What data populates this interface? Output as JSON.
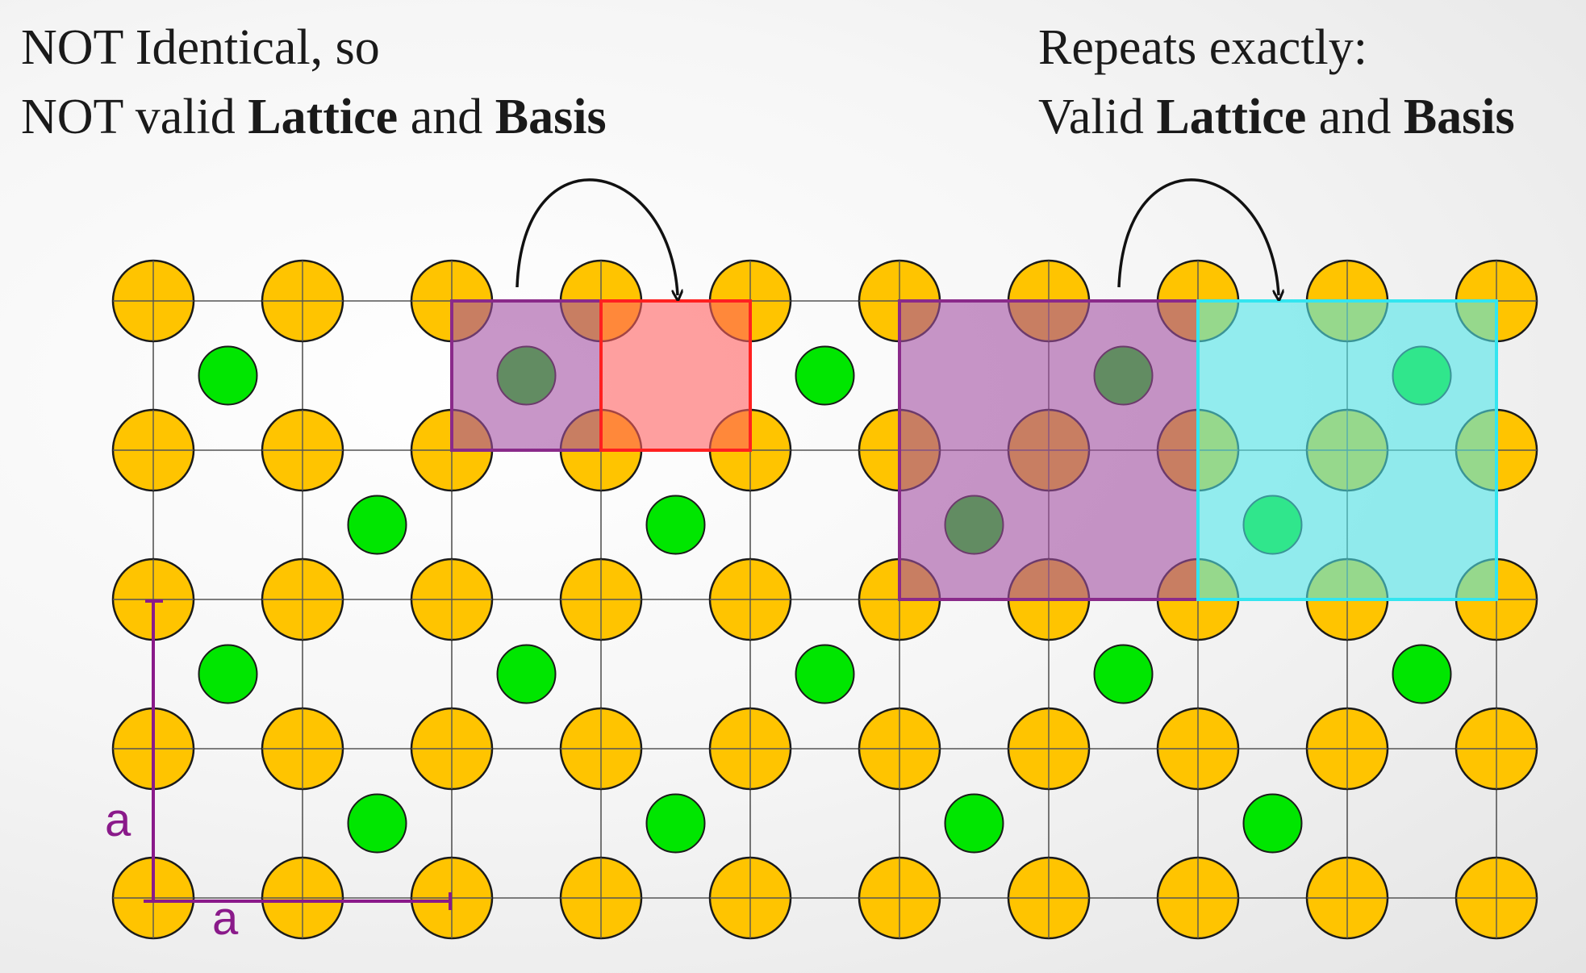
{
  "left_caption": {
    "line1": "NOT Identical, so",
    "line2_prefix": "NOT valid ",
    "line2_bold1": "Lattice",
    "line2_mid": " and ",
    "line2_bold2": "Basis"
  },
  "right_caption": {
    "line1": "Repeats exactly:",
    "line2_prefix": "Valid ",
    "line2_bold1": "Lattice",
    "line2_mid": " and ",
    "line2_bold2": "Basis"
  },
  "lattice": {
    "columns": 10,
    "rows": 5,
    "large_atom_color": "#ffc400",
    "small_atom_color": "#00e600",
    "grid_color": "#555555",
    "small_atoms": [
      [
        0,
        0
      ],
      [
        2,
        0
      ],
      [
        4,
        0
      ],
      [
        6,
        0
      ],
      [
        8,
        0
      ],
      [
        1,
        1
      ],
      [
        3,
        1
      ],
      [
        5,
        1
      ],
      [
        7,
        1
      ],
      [
        0,
        2
      ],
      [
        2,
        2
      ],
      [
        4,
        2
      ],
      [
        6,
        2
      ],
      [
        8,
        2
      ],
      [
        1,
        3
      ],
      [
        3,
        3
      ],
      [
        5,
        3
      ],
      [
        7,
        3
      ]
    ]
  },
  "cells": {
    "invalid_source": {
      "color": "#8a2a8a",
      "fill": "#a450a4"
    },
    "invalid_target": {
      "color": "#ff2020",
      "fill": "#ff6060"
    },
    "valid_source": {
      "color": "#8a2a8a",
      "fill": "#a450a4"
    },
    "valid_target": {
      "color": "#33e5f0",
      "fill": "#50e6ea"
    }
  },
  "axes": {
    "vertical_label": "a",
    "horizontal_label": "a",
    "color": "#8a1a8a"
  }
}
